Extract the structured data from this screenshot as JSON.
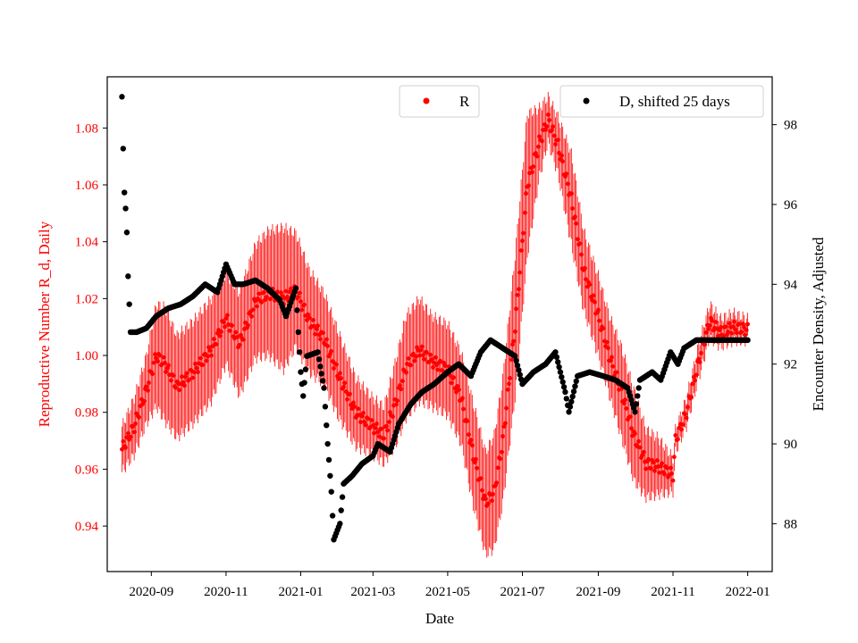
{
  "chart_data": {
    "type": "scatter",
    "title": "",
    "xlabel": "Date",
    "ylabel_left": "Reproductive Number R_d, Daily",
    "ylabel_right": "Encounter Density, Adjusted",
    "x_range": [
      "2020-07-27",
      "2022-01-21"
    ],
    "ylim_left": [
      0.924,
      1.098
    ],
    "ylim_right": [
      86.8,
      99.2
    ],
    "x_ticks": [
      "2020-09",
      "2020-11",
      "2021-01",
      "2021-03",
      "2021-05",
      "2021-07",
      "2021-09",
      "2021-11",
      "2022-01"
    ],
    "y_ticks_left": [
      "0.94",
      "0.96",
      "0.98",
      "1.00",
      "1.02",
      "1.04",
      "1.06",
      "1.08"
    ],
    "y_ticks_right": [
      "88",
      "90",
      "92",
      "94",
      "96",
      "98"
    ],
    "legend": [
      {
        "label": "R",
        "color": "#ff0000",
        "position": "top-center"
      },
      {
        "label": "D, shifted 25 days",
        "color": "#000000",
        "position": "top-right"
      }
    ],
    "colors": {
      "R": "#ff0000",
      "D": "#000000",
      "axis_left": "#ff0000",
      "axis": "#000000"
    },
    "series": [
      {
        "name": "R",
        "axis": "left",
        "marker": "dot with error bars",
        "points": [
          [
            "2020-08-08",
            0.967,
            0.008
          ],
          [
            "2020-08-18",
            0.975,
            0.01
          ],
          [
            "2020-08-28",
            0.988,
            0.012
          ],
          [
            "2020-09-05",
            1.0,
            0.018
          ],
          [
            "2020-09-12",
            0.997,
            0.02
          ],
          [
            "2020-09-22",
            0.989,
            0.018
          ],
          [
            "2020-10-05",
            0.994,
            0.018
          ],
          [
            "2020-10-20",
            1.002,
            0.018
          ],
          [
            "2020-11-01",
            1.013,
            0.016
          ],
          [
            "2020-11-12",
            1.004,
            0.018
          ],
          [
            "2020-11-25",
            1.019,
            0.02
          ],
          [
            "2020-12-06",
            1.022,
            0.022
          ],
          [
            "2020-12-18",
            1.02,
            0.025
          ],
          [
            "2020-12-28",
            1.023,
            0.02
          ],
          [
            "2021-01-08",
            1.012,
            0.018
          ],
          [
            "2021-01-20",
            1.006,
            0.016
          ],
          [
            "2021-02-01",
            0.993,
            0.015
          ],
          [
            "2021-02-15",
            0.98,
            0.012
          ],
          [
            "2021-03-01",
            0.975,
            0.01
          ],
          [
            "2021-03-10",
            0.972,
            0.01
          ],
          [
            "2021-03-20",
            0.984,
            0.015
          ],
          [
            "2021-03-28",
            0.996,
            0.018
          ],
          [
            "2021-04-08",
            1.002,
            0.018
          ],
          [
            "2021-04-18",
            0.998,
            0.016
          ],
          [
            "2021-05-01",
            0.995,
            0.016
          ],
          [
            "2021-05-12",
            0.985,
            0.016
          ],
          [
            "2021-05-22",
            0.965,
            0.018
          ],
          [
            "2021-06-01",
            0.948,
            0.018
          ],
          [
            "2021-06-08",
            0.952,
            0.02
          ],
          [
            "2021-06-15",
            0.97,
            0.022
          ],
          [
            "2021-06-25",
            1.01,
            0.025
          ],
          [
            "2021-07-05",
            1.06,
            0.025
          ],
          [
            "2021-07-15",
            1.075,
            0.012
          ],
          [
            "2021-07-22",
            1.083,
            0.008
          ],
          [
            "2021-07-30",
            1.074,
            0.01
          ],
          [
            "2021-08-10",
            1.055,
            0.016
          ],
          [
            "2021-08-20",
            1.03,
            0.014
          ],
          [
            "2021-09-01",
            1.014,
            0.014
          ],
          [
            "2021-09-10",
            1.0,
            0.014
          ],
          [
            "2021-09-20",
            0.987,
            0.016
          ],
          [
            "2021-09-30",
            0.972,
            0.016
          ],
          [
            "2021-10-10",
            0.962,
            0.012
          ],
          [
            "2021-10-20",
            0.961,
            0.01
          ],
          [
            "2021-11-01",
            0.958,
            0.006
          ],
          [
            "2021-11-03",
            0.97,
            0.004
          ],
          [
            "2021-11-12",
            0.98,
            0.005
          ],
          [
            "2021-11-22",
            0.998,
            0.006
          ],
          [
            "2021-12-01",
            1.012,
            0.006
          ],
          [
            "2021-12-10",
            1.008,
            0.005
          ],
          [
            "2021-12-20",
            1.01,
            0.005
          ],
          [
            "2022-01-01",
            1.009,
            0.004
          ]
        ]
      },
      {
        "name": "D, shifted 25 days",
        "axis": "right",
        "marker": "dot",
        "points": [
          [
            "2020-08-08",
            98.7
          ],
          [
            "2020-08-09",
            97.4
          ],
          [
            "2020-08-10",
            96.3
          ],
          [
            "2020-08-11",
            95.9
          ],
          [
            "2020-08-12",
            95.3
          ],
          [
            "2020-08-13",
            94.2
          ],
          [
            "2020-08-15",
            92.8
          ],
          [
            "2020-08-20",
            92.8
          ],
          [
            "2020-08-28",
            92.9
          ],
          [
            "2020-09-05",
            93.2
          ],
          [
            "2020-09-15",
            93.4
          ],
          [
            "2020-09-25",
            93.5
          ],
          [
            "2020-10-05",
            93.7
          ],
          [
            "2020-10-15",
            94.0
          ],
          [
            "2020-10-25",
            93.8
          ],
          [
            "2020-11-01",
            94.5
          ],
          [
            "2020-11-08",
            94.0
          ],
          [
            "2020-11-15",
            94.0
          ],
          [
            "2020-11-25",
            94.1
          ],
          [
            "2020-12-05",
            93.9
          ],
          [
            "2020-12-15",
            93.6
          ],
          [
            "2020-12-20",
            93.2
          ],
          [
            "2020-12-28",
            93.9
          ],
          [
            "2020-12-30",
            92.8
          ],
          [
            "2021-01-01",
            91.8
          ],
          [
            "2021-01-03",
            91.2
          ],
          [
            "2021-01-06",
            92.2
          ],
          [
            "2021-01-15",
            92.3
          ],
          [
            "2021-01-20",
            91.4
          ],
          [
            "2021-01-23",
            90.0
          ],
          [
            "2021-01-26",
            88.8
          ],
          [
            "2021-01-28",
            87.6
          ],
          [
            "2021-02-02",
            88.0
          ],
          [
            "2021-02-05",
            89.0
          ],
          [
            "2021-02-12",
            89.2
          ],
          [
            "2021-02-20",
            89.5
          ],
          [
            "2021-03-01",
            89.7
          ],
          [
            "2021-03-05",
            90.0
          ],
          [
            "2021-03-15",
            89.8
          ],
          [
            "2021-03-22",
            90.5
          ],
          [
            "2021-04-01",
            91.0
          ],
          [
            "2021-04-10",
            91.3
          ],
          [
            "2021-04-20",
            91.5
          ],
          [
            "2021-05-01",
            91.8
          ],
          [
            "2021-05-10",
            92.0
          ],
          [
            "2021-05-20",
            91.7
          ],
          [
            "2021-05-28",
            92.3
          ],
          [
            "2021-06-05",
            92.6
          ],
          [
            "2021-06-15",
            92.4
          ],
          [
            "2021-06-25",
            92.2
          ],
          [
            "2021-07-01",
            91.5
          ],
          [
            "2021-07-10",
            91.8
          ],
          [
            "2021-07-20",
            92.0
          ],
          [
            "2021-07-28",
            92.3
          ],
          [
            "2021-08-05",
            91.3
          ],
          [
            "2021-08-08",
            90.8
          ],
          [
            "2021-08-15",
            91.7
          ],
          [
            "2021-08-25",
            91.8
          ],
          [
            "2021-09-05",
            91.7
          ],
          [
            "2021-09-15",
            91.6
          ],
          [
            "2021-09-25",
            91.4
          ],
          [
            "2021-10-01",
            90.8
          ],
          [
            "2021-10-05",
            91.6
          ],
          [
            "2021-10-15",
            91.8
          ],
          [
            "2021-10-22",
            91.6
          ],
          [
            "2021-10-30",
            92.3
          ],
          [
            "2021-11-05",
            92.0
          ],
          [
            "2021-11-10",
            92.4
          ],
          [
            "2021-11-20",
            92.6
          ],
          [
            "2021-12-01",
            92.6
          ],
          [
            "2021-12-15",
            92.6
          ],
          [
            "2022-01-01",
            92.6
          ]
        ]
      }
    ]
  }
}
